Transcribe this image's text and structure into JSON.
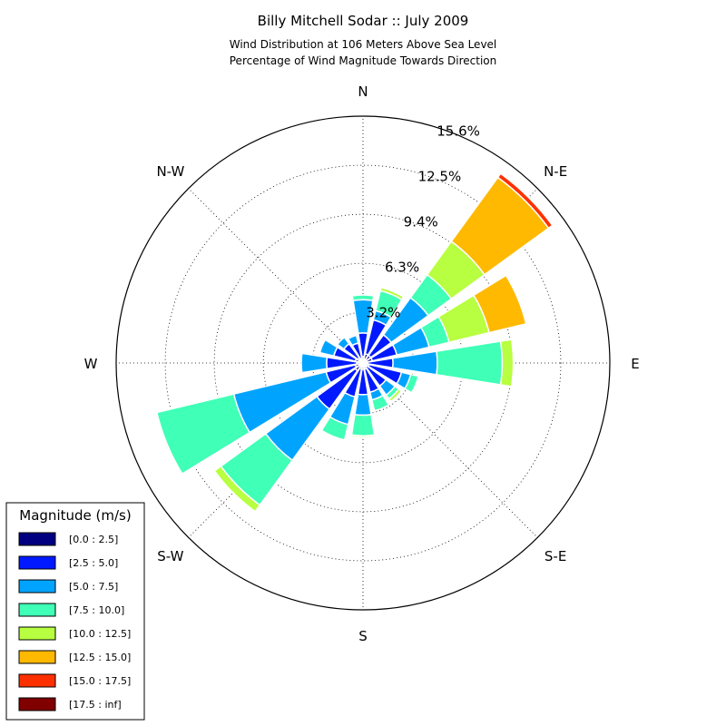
{
  "chart_data": {
    "type": "windrose",
    "title": "Billy Mitchell Sodar :: July 2009",
    "subtitle_lines": [
      "Wind Distribution at 106 Meters Above Sea Level",
      "Percentage of Wind Magnitude Towards Direction"
    ],
    "direction_labels": [
      {
        "label": "N",
        "angle": 0
      },
      {
        "label": "N-E",
        "angle": 45
      },
      {
        "label": "E",
        "angle": 90
      },
      {
        "label": "S-E",
        "angle": 135
      },
      {
        "label": "S",
        "angle": 180
      },
      {
        "label": "S-W",
        "angle": 225
      },
      {
        "label": "W",
        "angle": 270
      },
      {
        "label": "N-W",
        "angle": 315
      }
    ],
    "radial_ticks": [
      {
        "value": 3.2,
        "label": "3.2%"
      },
      {
        "value": 6.3,
        "label": "6.3%"
      },
      {
        "value": 9.4,
        "label": "9.4%"
      },
      {
        "value": 12.5,
        "label": "12.5%"
      },
      {
        "value": 15.6,
        "label": "15.6%"
      }
    ],
    "radial_max": 15.6,
    "legend": {
      "title": "Magnitude (m/s)",
      "placement": "bottom-left",
      "bins": [
        {
          "label": "[0.0 : 2.5]",
          "color": "#000080"
        },
        {
          "label": "[2.5 : 5.0]",
          "color": "#0019ff"
        },
        {
          "label": "[5.0 : 7.5]",
          "color": "#00a4ff"
        },
        {
          "label": "[7.5 : 10.0]",
          "color": "#40ffb7"
        },
        {
          "label": "[10.0 : 12.5]",
          "color": "#b7ff40"
        },
        {
          "label": "[12.5 : 15.0]",
          "color": "#ffb900"
        },
        {
          "label": "[15.0 : 17.5]",
          "color": "#ff3000"
        },
        {
          "label": "[17.5 : inf]",
          "color": "#800000"
        }
      ]
    },
    "sectors": [
      {
        "direction": 0,
        "cumulative": [
          0.4,
          1.9,
          4.0,
          4.3
        ]
      },
      {
        "direction": 22.5,
        "cumulative": [
          0.6,
          2.8,
          3.4,
          4.7,
          4.9
        ]
      },
      {
        "direction": 45,
        "cumulative": [
          0.6,
          2.2,
          5.1,
          6.9,
          9.5,
          14.5,
          14.8
        ]
      },
      {
        "direction": 67.5,
        "cumulative": [
          0.6,
          2.2,
          4.3,
          5.6,
          8.2,
          10.6
        ]
      },
      {
        "direction": 90,
        "cumulative": [
          0.3,
          1.9,
          4.7,
          8.8,
          9.5
        ]
      },
      {
        "direction": 112.5,
        "cumulative": [
          0.4,
          2.5,
          3.1,
          3.6
        ]
      },
      {
        "direction": 135,
        "cumulative": [
          0.3,
          1.8,
          2.5,
          2.8,
          3.0
        ]
      },
      {
        "direction": 157.5,
        "cumulative": [
          0.4,
          1.9,
          2.4,
          3.1
        ]
      },
      {
        "direction": 180,
        "cumulative": [
          0.4,
          2.0,
          3.3,
          4.6,
          4.7
        ]
      },
      {
        "direction": 202.5,
        "cumulative": [
          0.4,
          2.2,
          4.0,
          5.0
        ]
      },
      {
        "direction": 225,
        "cumulative": [
          0.6,
          3.6,
          7.6,
          11.1,
          11.6
        ]
      },
      {
        "direction": 247.5,
        "cumulative": [
          0.5,
          2.4,
          8.4,
          13.4
        ]
      },
      {
        "direction": 270,
        "cumulative": [
          0.4,
          2.3,
          3.9
        ]
      },
      {
        "direction": 292.5,
        "cumulative": [
          0.5,
          1.9,
          2.8
        ]
      },
      {
        "direction": 315,
        "cumulative": [
          0.4,
          1.5,
          2.0
        ]
      },
      {
        "direction": 337.5,
        "cumulative": [
          0.3,
          1.3,
          1.8
        ]
      }
    ]
  }
}
